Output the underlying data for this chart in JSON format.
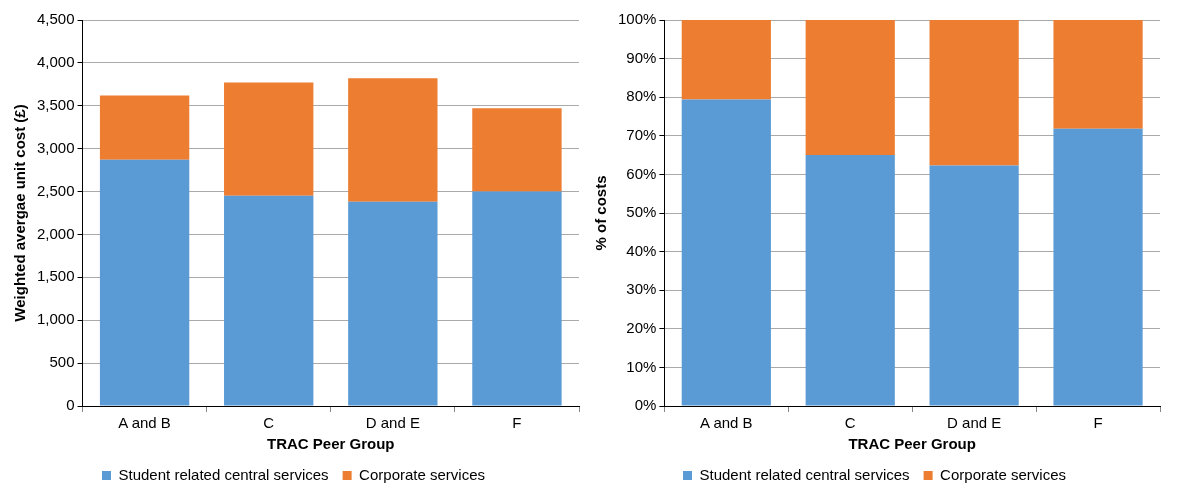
{
  "chart_data": [
    {
      "type": "bar",
      "xlabel": "TRAC Peer Group",
      "ylabel": "Weighted avergae unit cost (£)",
      "categories": [
        "A and B",
        "C",
        "D and E",
        "F"
      ],
      "stacked": true,
      "series": [
        {
          "name": "Student related central services",
          "color": "#5b9bd5",
          "values": [
            2870,
            2450,
            2380,
            2500
          ]
        },
        {
          "name": "Corporate services",
          "color": "#ed7d31",
          "values": [
            750,
            1320,
            1440,
            970
          ]
        }
      ],
      "ylim": [
        0,
        4500
      ],
      "yticks": [
        {
          "value": 0,
          "label": "0"
        },
        {
          "value": 500,
          "label": "500"
        },
        {
          "value": 1000,
          "label": "1,000"
        },
        {
          "value": 1500,
          "label": "1,500"
        },
        {
          "value": 2000,
          "label": "2,000"
        },
        {
          "value": 2500,
          "label": "2,500"
        },
        {
          "value": 3000,
          "label": "3,000"
        },
        {
          "value": 3500,
          "label": "3,500"
        },
        {
          "value": 4000,
          "label": "4,000"
        },
        {
          "value": 4500,
          "label": "4,500"
        }
      ],
      "grid": "y",
      "legend": "bottom"
    },
    {
      "type": "bar",
      "xlabel": "TRAC Peer Group",
      "ylabel": "% of costs",
      "categories": [
        "A and B",
        "C",
        "D and E",
        "F"
      ],
      "stacked": true,
      "series": [
        {
          "name": "Student related central services",
          "color": "#5b9bd5",
          "values": [
            79.4,
            65.0,
            62.3,
            71.8
          ]
        },
        {
          "name": "Corporate services",
          "color": "#ed7d31",
          "values": [
            20.6,
            35.0,
            37.7,
            28.2
          ]
        }
      ],
      "ylim": [
        0,
        100
      ],
      "yticks": [
        {
          "value": 0,
          "label": "0%"
        },
        {
          "value": 10,
          "label": "10%"
        },
        {
          "value": 20,
          "label": "20%"
        },
        {
          "value": 30,
          "label": "30%"
        },
        {
          "value": 40,
          "label": "40%"
        },
        {
          "value": 50,
          "label": "50%"
        },
        {
          "value": 60,
          "label": "60%"
        },
        {
          "value": 70,
          "label": "70%"
        },
        {
          "value": 80,
          "label": "80%"
        },
        {
          "value": 90,
          "label": "90%"
        },
        {
          "value": 100,
          "label": "100%"
        }
      ],
      "grid": "y",
      "legend": "bottom"
    }
  ]
}
